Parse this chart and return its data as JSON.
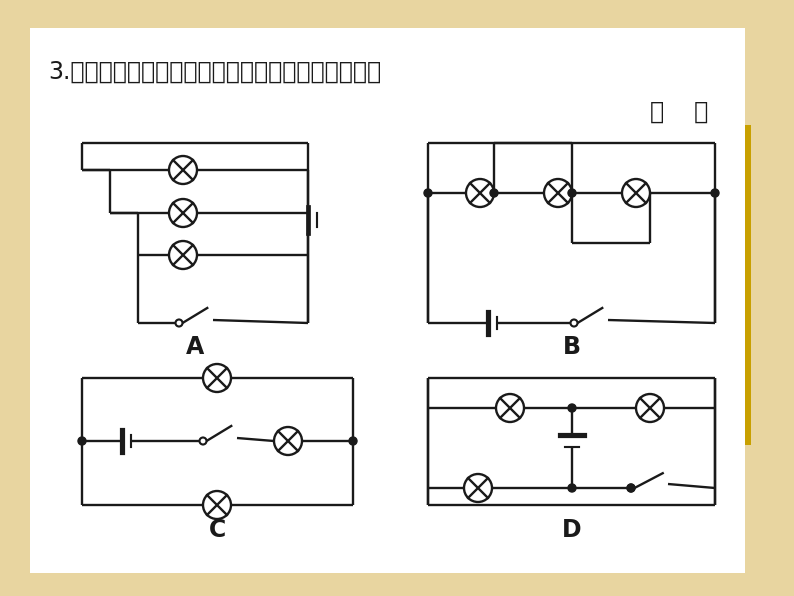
{
  "title": "3.（易错题）如图所示电路中，三个灯泡都并联的是",
  "answer_bracket": "（    ）",
  "bg_outer": "#e8d5a0",
  "bg_inner": "#ffffff",
  "line_color": "#1a1a1a",
  "label_A": "A",
  "label_B": "B",
  "label_C": "C",
  "label_D": "D",
  "title_fontsize": 17,
  "label_fontsize": 17,
  "lw": 1.7,
  "bulb_r": 14
}
